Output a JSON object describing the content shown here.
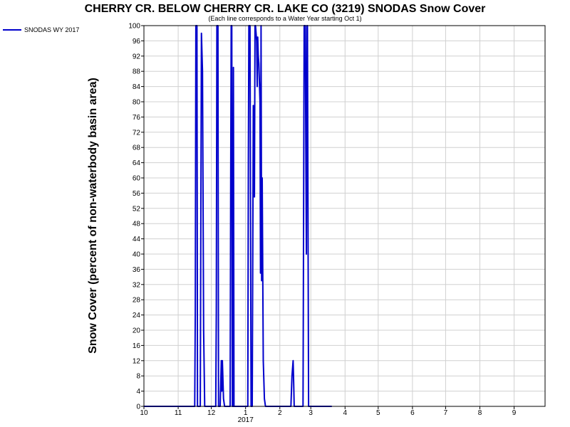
{
  "chart_data": {
    "type": "line",
    "title": "CHERRY CR. BELOW CHERRY CR. LAKE CO (3219) SNODAS Snow Cover",
    "subtitle": "(Each line corresponds to a Water Year starting Oct 1)",
    "xlabel": "",
    "ylabel": "Snow Cover (percent of non-waterbody basin area)",
    "ylim": [
      0,
      100
    ],
    "yticks": [
      0,
      4,
      8,
      12,
      16,
      20,
      24,
      28,
      32,
      36,
      40,
      44,
      48,
      52,
      56,
      60,
      64,
      68,
      72,
      76,
      80,
      84,
      88,
      92,
      96,
      100
    ],
    "xlim": [
      0,
      363
    ],
    "xticks": [
      {
        "x": 0,
        "label": "10"
      },
      {
        "x": 31,
        "label": "11"
      },
      {
        "x": 61,
        "label": "12"
      },
      {
        "x": 92,
        "label": "1"
      },
      {
        "x": 123,
        "label": "2"
      },
      {
        "x": 151,
        "label": "3"
      },
      {
        "x": 182,
        "label": "4"
      },
      {
        "x": 212,
        "label": "5"
      },
      {
        "x": 243,
        "label": "6"
      },
      {
        "x": 273,
        "label": "7"
      },
      {
        "x": 304,
        "label": "8"
      },
      {
        "x": 335,
        "label": "9"
      }
    ],
    "year_label": {
      "x": 92,
      "label": "2017"
    },
    "grid": true,
    "legend_position": "top-left",
    "series": [
      {
        "name": "SNODAS WY 2017",
        "color": "#0000cc",
        "points": [
          [
            0,
            0
          ],
          [
            46,
            0
          ],
          [
            46.5,
            25
          ],
          [
            47,
            100
          ],
          [
            48,
            100
          ],
          [
            48.5,
            0
          ],
          [
            51,
            0
          ],
          [
            52,
            98
          ],
          [
            53,
            88
          ],
          [
            54,
            20
          ],
          [
            55,
            0
          ],
          [
            59,
            0
          ],
          [
            60,
            0
          ],
          [
            65,
            0
          ],
          [
            65.5,
            25
          ],
          [
            66,
            100
          ],
          [
            67,
            100
          ],
          [
            67.5,
            0
          ],
          [
            69,
            0
          ],
          [
            70,
            12
          ],
          [
            70.5,
            4
          ],
          [
            71,
            12
          ],
          [
            72,
            2
          ],
          [
            73,
            0
          ],
          [
            78,
            0
          ],
          [
            78.5,
            60
          ],
          [
            79,
            100
          ],
          [
            79.5,
            100
          ],
          [
            80,
            0
          ],
          [
            80.5,
            0
          ],
          [
            81,
            89
          ],
          [
            81.5,
            0
          ],
          [
            82,
            0
          ],
          [
            87,
            0
          ],
          [
            94,
            0
          ],
          [
            94.5,
            65
          ],
          [
            95,
            100
          ],
          [
            96,
            100
          ],
          [
            97,
            0
          ],
          [
            98,
            0
          ],
          [
            99,
            79
          ],
          [
            99.5,
            70
          ],
          [
            100,
            55
          ],
          [
            100.5,
            100
          ],
          [
            101,
            100
          ],
          [
            102,
            96
          ],
          [
            102.5,
            84
          ],
          [
            103,
            97
          ],
          [
            103.5,
            92
          ],
          [
            104,
            90
          ],
          [
            105,
            80
          ],
          [
            105.5,
            35
          ],
          [
            106,
            100
          ],
          [
            106.5,
            33
          ],
          [
            107,
            60
          ],
          [
            108,
            12
          ],
          [
            109,
            2
          ],
          [
            110,
            0
          ],
          [
            133,
            0
          ],
          [
            134,
            8
          ],
          [
            135,
            12
          ],
          [
            135.5,
            6
          ],
          [
            136,
            0
          ],
          [
            137,
            0
          ],
          [
            144,
            0
          ],
          [
            145,
            100
          ],
          [
            146,
            100
          ],
          [
            147,
            40
          ],
          [
            147.5,
            100
          ],
          [
            148,
            100
          ],
          [
            149,
            0
          ],
          [
            150,
            0
          ],
          [
            170,
            0
          ]
        ]
      }
    ]
  }
}
